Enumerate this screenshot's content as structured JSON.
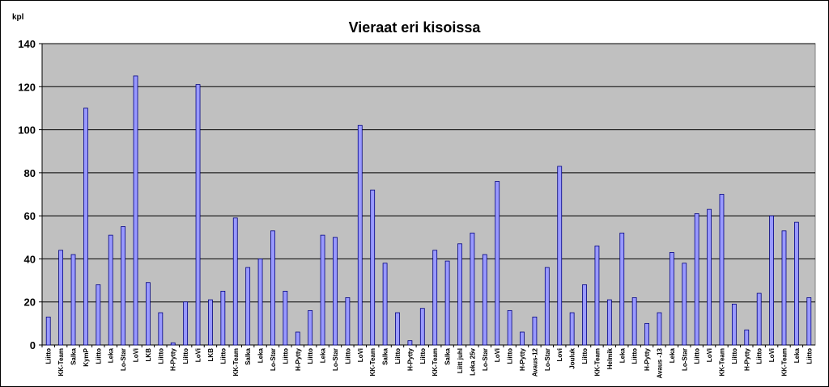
{
  "chart_data": {
    "type": "bar",
    "title": "Vieraat eri kisoissa",
    "ylabel": "kpl",
    "xlabel": "",
    "ylim": [
      0,
      140
    ],
    "yticks": [
      0,
      20,
      40,
      60,
      80,
      100,
      120,
      140
    ],
    "grid": true,
    "legend": "none",
    "categories": [
      "Liitto",
      "KK-Team",
      "Salka",
      "KymP",
      "Liitto",
      "Leka",
      "Lo-Star",
      "LoVi",
      "LKB",
      "Liitto",
      "H-Pytty",
      "Liitto",
      "LoVi",
      "LKB",
      "Liitto",
      "KK-Team",
      "Salka",
      "Leka",
      "Lo-Star",
      "Liitto",
      "H-Pytty",
      "Liitto",
      "Leka",
      "Lo-Star",
      "Liitto",
      "LoVi",
      "KK-Team",
      "Salka",
      "Liitto",
      "H-Pytty",
      "Liitto",
      "KK-Team",
      "Salka",
      "Liitt juhl",
      "Leka 25v",
      "Lo-Star",
      "LoVi",
      "Liitto",
      "H-Pytty",
      "Avaus-12",
      "Lo-Star",
      "Lovi",
      "Jouluk",
      "Liitto",
      "KK-Team",
      "Helmik",
      "Leka",
      "Liitto",
      "H-Pytty",
      "Avaus -13",
      "Leka",
      "Lo-Star",
      "Liitto",
      "LoVi",
      "KK-Team",
      "Liitto",
      "H-Pytty",
      "Liitto",
      "LoVi",
      "KK-Team",
      "Leka",
      "Liitto"
    ],
    "values": [
      13,
      44,
      42,
      110,
      28,
      51,
      55,
      125,
      29,
      15,
      1,
      20,
      121,
      21,
      25,
      59,
      36,
      40,
      53,
      25,
      6,
      16,
      51,
      50,
      22,
      102,
      72,
      38,
      15,
      2,
      17,
      44,
      39,
      47,
      52,
      42,
      76,
      16,
      6,
      13,
      36,
      83,
      15,
      28,
      46,
      21,
      52,
      22,
      10,
      15,
      43,
      38,
      61,
      63,
      70,
      19,
      7,
      24,
      60,
      53,
      57,
      22
    ],
    "colors": {
      "plot_background": "#c0c0c0",
      "bar_fill": "#9999ff",
      "bar_stroke": "#000080",
      "gridline": "#000000",
      "axis": "#000000"
    }
  }
}
